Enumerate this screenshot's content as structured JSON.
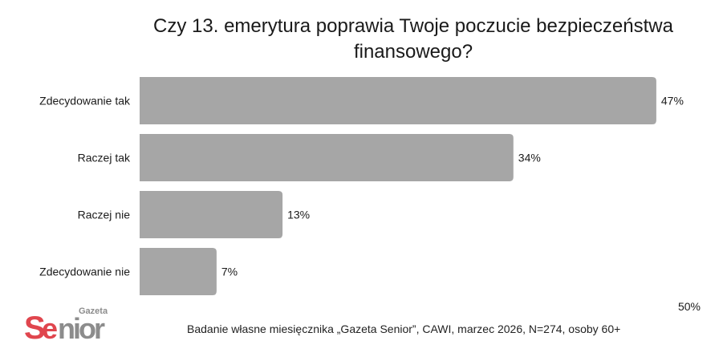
{
  "chart_data": {
    "type": "bar",
    "orientation": "horizontal",
    "title": "Czy 13. emerytura poprawia Twoje poczucie bezpieczeństwa finansowego?",
    "categories": [
      "Zdecydowanie tak",
      "Raczej tak",
      "Raczej nie",
      "Zdecydowanie nie"
    ],
    "values": [
      47,
      34,
      13,
      7
    ],
    "value_labels": [
      "47%",
      "34%",
      "13%",
      "7%"
    ],
    "xlim": [
      0,
      50
    ],
    "x_tick_labels": [
      "50%"
    ],
    "grid": false,
    "legend": "none",
    "bar_color": "#a6a6a6"
  },
  "footer": {
    "source": "Badanie własne miesięcznika „Gazeta Senior”, CAWI, marzec 2026, N=274, osoby 60+"
  },
  "logo": {
    "brand": "Senior",
    "tag": "Gazeta",
    "colors": {
      "red": "#e0464e",
      "gray": "#8c8c8c"
    }
  }
}
